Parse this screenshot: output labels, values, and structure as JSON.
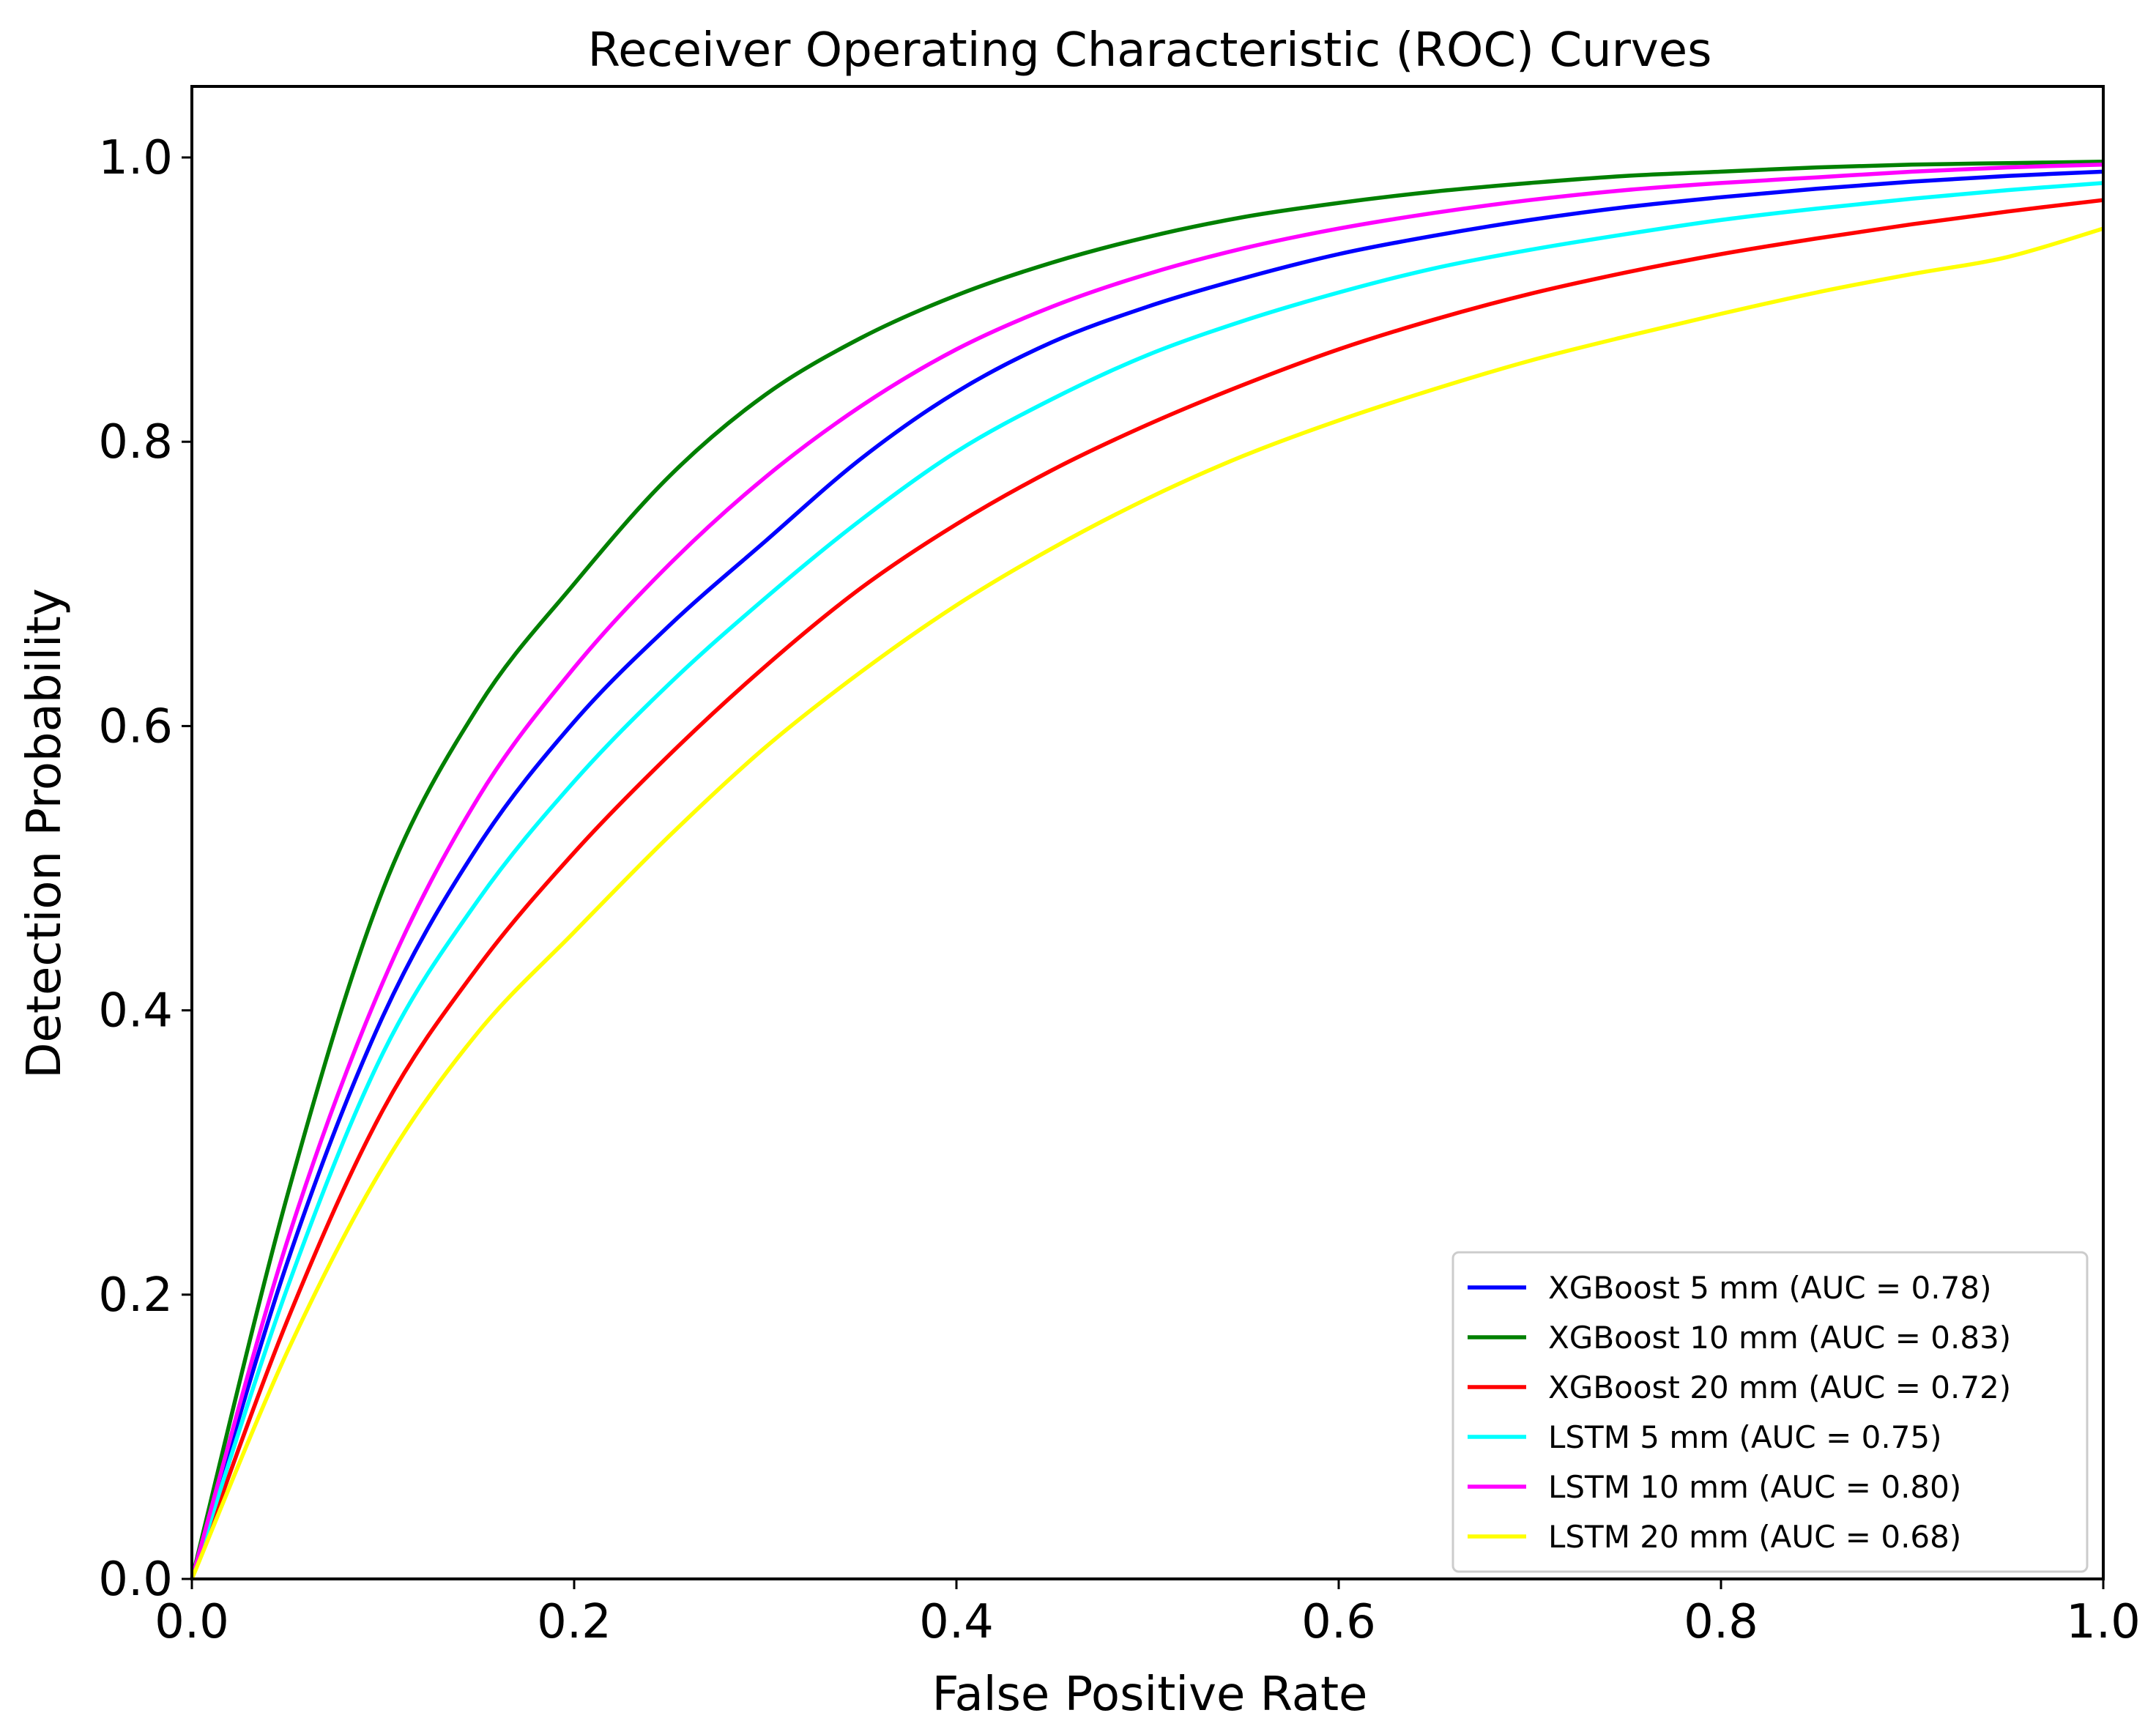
{
  "chart_data": {
    "type": "line",
    "title": "Receiver Operating Characteristic (ROC) Curves",
    "xlabel": "False Positive Rate",
    "ylabel": "Detection Probability",
    "xlim": [
      0,
      1
    ],
    "ylim": [
      0,
      1.05
    ],
    "xticks": [
      0.0,
      0.2,
      0.4,
      0.6,
      0.8,
      1.0
    ],
    "yticks": [
      0.0,
      0.2,
      0.4,
      0.6,
      0.8,
      1.0
    ],
    "xtick_labels": [
      "0.0",
      "0.2",
      "0.4",
      "0.6",
      "0.8",
      "1.0"
    ],
    "ytick_labels": [
      "0.0",
      "0.2",
      "0.4",
      "0.6",
      "0.8",
      "1.0"
    ],
    "grid": false,
    "legend_position": "lower-right",
    "x": [
      0.0,
      0.05,
      0.1,
      0.15,
      0.2,
      0.25,
      0.3,
      0.35,
      0.4,
      0.45,
      0.5,
      0.55,
      0.6,
      0.65,
      0.7,
      0.75,
      0.8,
      0.85,
      0.9,
      0.95,
      1.0
    ],
    "series": [
      {
        "name": "XGBoost 5 mm",
        "label": "XGBoost 5 mm (AUC = 0.78)",
        "color": "#0000ff",
        "values": [
          0.0,
          0.223,
          0.396,
          0.516,
          0.603,
          0.671,
          0.73,
          0.788,
          0.835,
          0.87,
          0.895,
          0.915,
          0.932,
          0.945,
          0.956,
          0.965,
          0.972,
          0.978,
          0.983,
          0.987,
          0.99
        ]
      },
      {
        "name": "XGBoost 10 mm",
        "label": "XGBoost 10 mm (AUC = 0.83)",
        "color": "#008000",
        "values": [
          0.0,
          0.27,
          0.485,
          0.614,
          0.7,
          0.776,
          0.833,
          0.873,
          0.903,
          0.926,
          0.944,
          0.958,
          0.968,
          0.976,
          0.982,
          0.987,
          0.99,
          0.993,
          0.995,
          0.996,
          0.997
        ]
      },
      {
        "name": "XGBoost 20 mm",
        "label": "XGBoost 20 mm (AUC = 0.72)",
        "color": "#ff0000",
        "values": [
          0.0,
          0.182,
          0.33,
          0.431,
          0.511,
          0.58,
          0.642,
          0.697,
          0.742,
          0.78,
          0.812,
          0.84,
          0.865,
          0.886,
          0.904,
          0.919,
          0.932,
          0.943,
          0.953,
          0.962,
          0.97
        ]
      },
      {
        "name": "LSTM 5 mm",
        "label": "LSTM 5 mm (AUC = 0.75)",
        "color": "#00ffff",
        "values": [
          0.0,
          0.205,
          0.37,
          0.478,
          0.561,
          0.63,
          0.69,
          0.745,
          0.793,
          0.83,
          0.861,
          0.885,
          0.905,
          0.922,
          0.935,
          0.946,
          0.956,
          0.964,
          0.971,
          0.977,
          0.982
        ]
      },
      {
        "name": "LSTM 10 mm",
        "label": "LSTM 10 mm (AUC = 0.80)",
        "color": "#ff00ff",
        "values": [
          0.0,
          0.238,
          0.42,
          0.55,
          0.641,
          0.714,
          0.775,
          0.825,
          0.865,
          0.895,
          0.918,
          0.936,
          0.95,
          0.961,
          0.97,
          0.977,
          0.982,
          0.986,
          0.99,
          0.993,
          0.995
        ]
      },
      {
        "name": "LSTM 20 mm",
        "label": "LSTM 20 mm (AUC = 0.68)",
        "color": "#ffff00",
        "values": [
          0.0,
          0.16,
          0.29,
          0.385,
          0.455,
          0.523,
          0.585,
          0.638,
          0.685,
          0.725,
          0.76,
          0.79,
          0.815,
          0.837,
          0.857,
          0.874,
          0.89,
          0.905,
          0.918,
          0.93,
          0.95
        ]
      }
    ]
  }
}
